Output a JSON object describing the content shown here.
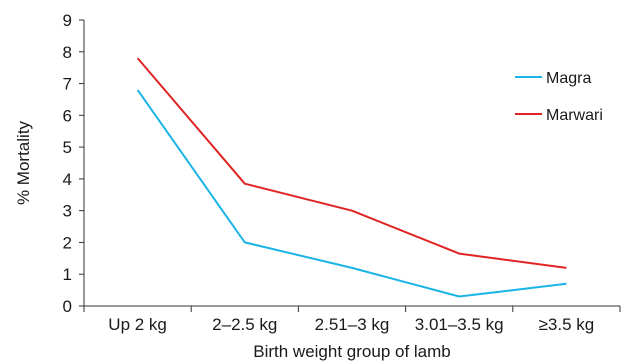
{
  "chart_data": {
    "type": "line",
    "categories": [
      "Up 2 kg",
      "2–2.5 kg",
      "2.51–3 kg",
      "3.01–3.5 kg",
      "≥3.5 kg"
    ],
    "series": [
      {
        "name": "Magra",
        "values": [
          6.8,
          2.0,
          1.2,
          0.3,
          0.7
        ],
        "color": "#1ab4e6"
      },
      {
        "name": "Marwari",
        "values": [
          7.8,
          3.85,
          3.0,
          1.65,
          1.2
        ],
        "color": "#e02424"
      }
    ],
    "xlabel": "Birth weight group of lamb",
    "ylabel": "% Mortality",
    "ylim": [
      0,
      9
    ],
    "yticks": [
      0,
      1,
      2,
      3,
      4,
      5,
      6,
      7,
      8,
      9
    ],
    "grid": false,
    "legend_position": "right"
  }
}
